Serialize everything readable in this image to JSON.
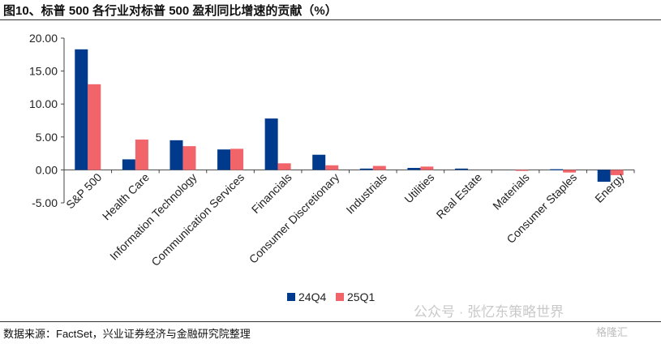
{
  "header": {
    "title": "图10、标普 500 各行业对标普 500 盈利同比增速的贡献（%）"
  },
  "footer": {
    "source": "数据来源：FactSet，兴业证券经济与金融研究院整理"
  },
  "watermark": {
    "text": "公众号 · 张忆东策略世界",
    "logo": "格隆汇"
  },
  "chart_data": {
    "type": "bar",
    "categories": [
      "S&P 500",
      "Health Care",
      "Information Technology",
      "Communication Services",
      "Financials",
      "Consumer Discretionary",
      "Industrials",
      "Utilities",
      "Real Estate",
      "Materials",
      "Consumer Staples",
      "Energy"
    ],
    "series": [
      {
        "name": "24Q4",
        "color": "#003a8c",
        "values": [
          18.3,
          1.6,
          4.5,
          3.1,
          7.8,
          2.3,
          0.2,
          0.3,
          0.2,
          0.0,
          0.1,
          -1.8
        ]
      },
      {
        "name": "25Q1",
        "color": "#f0646a",
        "values": [
          13.0,
          4.6,
          3.6,
          3.2,
          1.0,
          0.7,
          0.6,
          0.5,
          0.0,
          -0.1,
          -0.4,
          -0.8
        ]
      }
    ],
    "yticks": [
      "20.00",
      "15.00",
      "10.00",
      "5.00",
      "0.00",
      "-5.00"
    ],
    "ylim": [
      -5,
      20
    ],
    "legend_position": "bottom-center",
    "grid": false
  }
}
